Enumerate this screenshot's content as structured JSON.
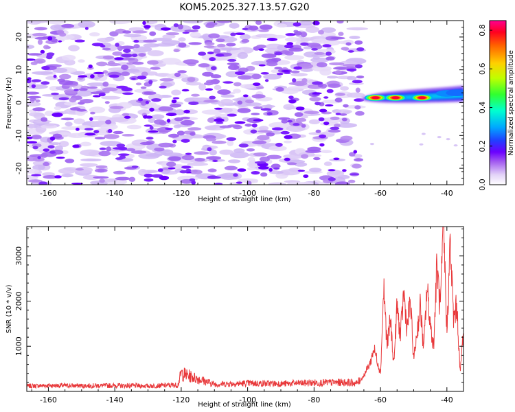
{
  "figure": {
    "title": "KOM5.2025.327.13.57.G20"
  },
  "chart_data": [
    {
      "type": "heatmap",
      "name": "spectrogram",
      "xlabel": "Height of straight line (km)",
      "ylabel": "Frequency (Hz)",
      "xlim": [
        -166.5,
        -35
      ],
      "ylim": [
        -25,
        25
      ],
      "x_ticks": [
        -160,
        -140,
        -120,
        -100,
        -80,
        -60,
        -40
      ],
      "y_ticks": [
        -20,
        -10,
        0,
        10,
        20
      ],
      "noise_region": {
        "x_range": [
          -166.5,
          -66
        ],
        "y_range": [
          -25,
          25
        ],
        "value_range": [
          0.0,
          0.2
        ]
      },
      "signal_band": {
        "x_range": [
          -66,
          -35
        ],
        "center_frequency": 1.5,
        "peaks": [
          {
            "x": -61.5,
            "y": 1.5,
            "value": 0.82
          },
          {
            "x": -55.5,
            "y": 1.5,
            "value": 0.8
          },
          {
            "x": -47.5,
            "y": 1.5,
            "value": 0.8
          },
          {
            "x": -40.0,
            "y": 2.8,
            "value": 0.28
          },
          {
            "x": -37.0,
            "y": 3.0,
            "value": 0.26
          }
        ]
      },
      "colorbar": {
        "label": "Normalized spectral amplitude",
        "range": [
          0.0,
          0.85
        ],
        "ticks": [
          "0.0",
          "0.2",
          "0.4",
          "0.6",
          "0.8"
        ],
        "tick_values": [
          0.0,
          0.2,
          0.4,
          0.6,
          0.8
        ]
      }
    },
    {
      "type": "line",
      "name": "snr",
      "xlabel": "Height of straight line (km)",
      "ylabel": "SNR (10 * v/v)",
      "xlim": [
        -166.5,
        -35
      ],
      "ylim": [
        0,
        3650
      ],
      "x_ticks": [
        -160,
        -140,
        -120,
        -100,
        -80,
        -60,
        -40
      ],
      "y_ticks": [
        1000,
        2000,
        3000
      ],
      "color": "#e8383a",
      "series": [
        {
          "name": "SNR",
          "x": [
            -166,
            -160,
            -150,
            -140,
            -130,
            -121,
            -120,
            -110,
            -100,
            -90,
            -80,
            -70,
            -67,
            -65,
            -63,
            -62,
            -61,
            -60,
            -59.5,
            -59,
            -58,
            -57,
            -56,
            -55,
            -54,
            -53,
            -52,
            -51,
            -50,
            -49,
            -48,
            -47,
            -46,
            -45,
            -44,
            -43,
            -42,
            -41,
            -40,
            -39,
            -38,
            -37,
            -36,
            -35
          ],
          "y": [
            120,
            130,
            125,
            130,
            120,
            140,
            400,
            160,
            180,
            170,
            190,
            200,
            180,
            350,
            650,
            950,
            700,
            400,
            1300,
            2300,
            1000,
            1600,
            600,
            1900,
            1200,
            2200,
            1400,
            2000,
            700,
            1300,
            1900,
            900,
            2300,
            1500,
            1000,
            2800,
            1800,
            3650,
            1300,
            3300,
            1600,
            1900,
            400,
            1400
          ]
        }
      ]
    }
  ]
}
